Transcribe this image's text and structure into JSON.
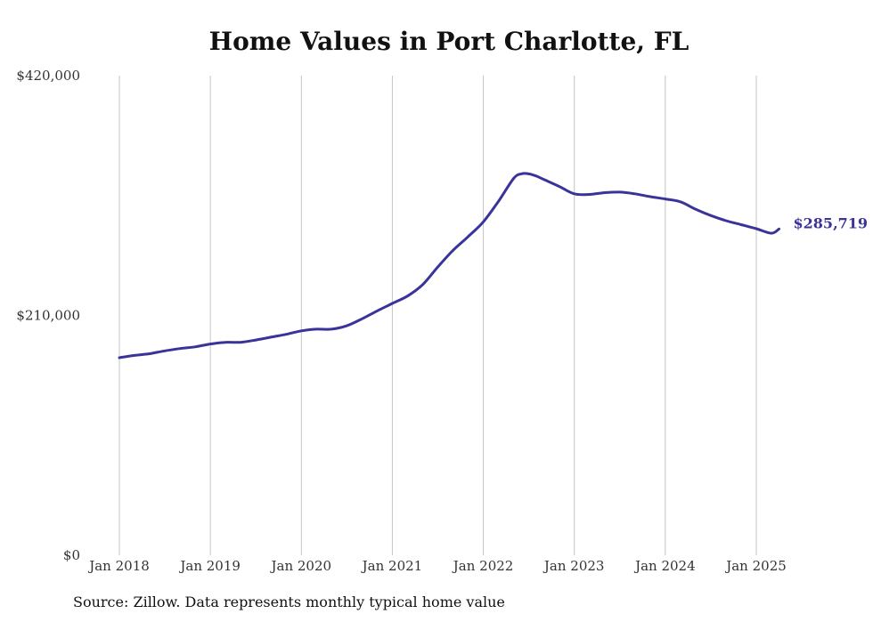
{
  "chart_data": {
    "type": "line",
    "title": "Home Values in Port Charlotte, FL",
    "xlabel": "",
    "ylabel": "",
    "ylim": [
      0,
      420000
    ],
    "y_ticks": [
      0,
      210000,
      420000
    ],
    "y_tick_labels": [
      "$0",
      "$210,000",
      "$420,000"
    ],
    "x_tick_labels": [
      "Jan 2018",
      "Jan 2019",
      "Jan 2020",
      "Jan 2021",
      "Jan 2022",
      "Jan 2023",
      "Jan 2024",
      "Jan 2025"
    ],
    "x_ticks": [
      "2018-01",
      "2019-01",
      "2020-01",
      "2021-01",
      "2022-01",
      "2023-01",
      "2024-01",
      "2025-01"
    ],
    "grid": "vertical",
    "line_color": "#3a3399",
    "end_label": "$285,719",
    "series": [
      {
        "x": [
          "2018-01",
          "2018-03",
          "2018-05",
          "2018-07",
          "2018-09",
          "2018-11",
          "2019-01",
          "2019-03",
          "2019-05",
          "2019-07",
          "2019-09",
          "2019-11",
          "2020-01",
          "2020-03",
          "2020-05",
          "2020-07",
          "2020-09",
          "2020-11",
          "2021-01",
          "2021-03",
          "2021-05",
          "2021-07",
          "2021-09",
          "2021-11",
          "2022-01",
          "2022-03",
          "2022-05",
          "2022-06",
          "2022-07",
          "2022-08",
          "2022-09",
          "2022-11",
          "2023-01",
          "2023-03",
          "2023-05",
          "2023-07",
          "2023-09",
          "2023-11",
          "2024-01",
          "2024-03",
          "2024-05",
          "2024-07",
          "2024-09",
          "2024-11",
          "2025-01",
          "2025-03",
          "2025-04"
        ],
        "values": [
          173000,
          175000,
          176500,
          179000,
          181000,
          182500,
          185000,
          186500,
          186500,
          188500,
          191000,
          193500,
          196500,
          198000,
          198000,
          201000,
          207000,
          214000,
          220500,
          227000,
          237000,
          252500,
          267000,
          279000,
          292000,
          310000,
          330000,
          334000,
          334000,
          332000,
          329000,
          323000,
          316500,
          316000,
          317500,
          318000,
          316500,
          314000,
          312000,
          309500,
          303000,
          297500,
          293000,
          289500,
          286000,
          282000,
          285719
        ]
      }
    ]
  },
  "source_text": "Source: Zillow. Data represents monthly typical home value"
}
